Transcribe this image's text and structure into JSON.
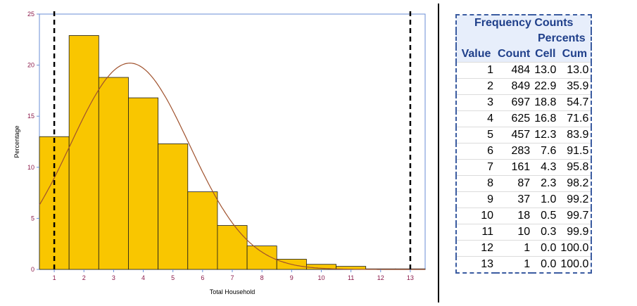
{
  "chart_data": {
    "type": "bar",
    "xlabel": "Total Household",
    "ylabel": "Percentage",
    "xlim": [
      0.5,
      13.5
    ],
    "ylim": [
      0,
      25
    ],
    "xticks": [
      1,
      2,
      3,
      4,
      5,
      6,
      7,
      8,
      9,
      10,
      11,
      12,
      13
    ],
    "yticks": [
      0,
      5,
      10,
      15,
      20,
      25
    ],
    "categories": [
      1,
      2,
      3,
      4,
      5,
      6,
      7,
      8,
      9,
      10,
      11,
      12,
      13
    ],
    "values": [
      13.0,
      22.9,
      18.8,
      16.8,
      12.3,
      7.6,
      4.3,
      2.3,
      1.0,
      0.5,
      0.3,
      0.0,
      0.0
    ],
    "reference_lines_x": [
      1,
      13
    ],
    "curve": {
      "type": "normal",
      "mean": 3.55,
      "sd": 2.0,
      "peak": 20.2
    },
    "colors": {
      "bar": "#f9c600",
      "bar_edge": "#1a1a1a",
      "curve": "#a0522d",
      "tick_label": "#8b1a4a",
      "axis": "#6a8ed6",
      "refline": "#000000"
    }
  },
  "table": {
    "title": "Frequency Counts",
    "percents_label": "Percents",
    "headers": {
      "value": "Value",
      "count": "Count",
      "cell": "Cell",
      "cum": "Cum"
    },
    "rows": [
      [
        "1",
        "484",
        "13.0",
        "13.0"
      ],
      [
        "2",
        "849",
        "22.9",
        "35.9"
      ],
      [
        "3",
        "697",
        "18.8",
        "54.7"
      ],
      [
        "4",
        "625",
        "16.8",
        "71.6"
      ],
      [
        "5",
        "457",
        "12.3",
        "83.9"
      ],
      [
        "6",
        "283",
        "7.6",
        "91.5"
      ],
      [
        "7",
        "161",
        "4.3",
        "95.8"
      ],
      [
        "8",
        "87",
        "2.3",
        "98.2"
      ],
      [
        "9",
        "37",
        "1.0",
        "99.2"
      ],
      [
        "10",
        "18",
        "0.5",
        "99.7"
      ],
      [
        "11",
        "10",
        "0.3",
        "99.9"
      ],
      [
        "12",
        "1",
        "0.0",
        "100.0"
      ],
      [
        "13",
        "1",
        "0.0",
        "100.0"
      ]
    ]
  }
}
